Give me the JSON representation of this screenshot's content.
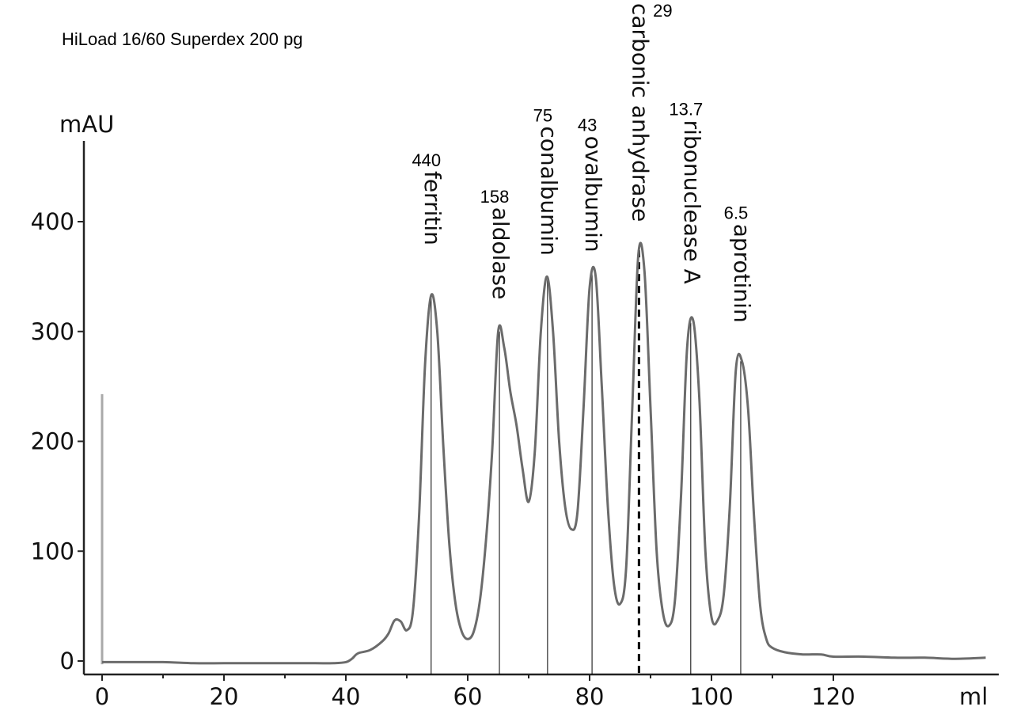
{
  "chart_data": {
    "type": "line",
    "title": "HiLoad 16/60 Superdex 200 pg",
    "xlabel": "ml",
    "ylabel": "mAU",
    "xlim": [
      -3,
      147
    ],
    "ylim": [
      -12,
      475
    ],
    "x_ticks": [
      0,
      20,
      40,
      60,
      80,
      100,
      120
    ],
    "x_minor_ticks": [
      10,
      30,
      50,
      70,
      90,
      110
    ],
    "y_ticks": [
      0,
      100,
      200,
      300,
      400
    ],
    "grid": false,
    "colors": {
      "trace": "#6b6b6b",
      "axis": "#222222",
      "injection_marker": "#aaaaaa"
    },
    "injection_marker": {
      "x": 0,
      "y_top": 243
    },
    "series": [
      {
        "x": [
          0,
          5,
          10,
          15,
          20,
          25,
          30,
          35,
          38,
          40,
          41,
          42,
          44,
          46,
          47,
          48,
          49,
          50,
          51,
          52,
          53,
          54,
          55,
          56,
          57,
          58,
          59,
          60,
          61,
          62,
          63,
          64,
          65,
          66,
          67,
          68,
          69,
          70,
          71,
          72,
          73,
          74,
          75,
          76,
          77,
          78,
          79,
          80,
          81,
          82,
          83,
          84,
          85,
          86,
          87,
          88,
          89,
          90,
          91,
          92,
          93,
          94,
          95,
          96,
          97,
          98,
          99,
          100,
          101,
          102,
          103,
          104,
          105,
          106,
          107,
          108,
          109,
          110,
          112,
          115,
          118,
          120,
          125,
          130,
          135,
          140,
          145
        ],
        "y": [
          -1,
          -1,
          -1,
          -2,
          -2,
          -2,
          -2,
          -2,
          -2,
          -1,
          2,
          7,
          10,
          18,
          25,
          37,
          36,
          28,
          45,
          130,
          270,
          333,
          300,
          195,
          105,
          52,
          27,
          20,
          27,
          55,
          110,
          190,
          300,
          285,
          245,
          215,
          175,
          145,
          190,
          300,
          350,
          300,
          200,
          140,
          120,
          135,
          230,
          340,
          350,
          250,
          140,
          70,
          52,
          85,
          230,
          370,
          355,
          230,
          100,
          45,
          32,
          55,
          150,
          285,
          310,
          240,
          100,
          40,
          37,
          60,
          140,
          265,
          273,
          230,
          130,
          50,
          20,
          12,
          8,
          6,
          6,
          4,
          4,
          3,
          3,
          2,
          3
        ]
      }
    ],
    "peaks": [
      {
        "name": "ferritin",
        "mw": "440",
        "x": 54,
        "y": 333
      },
      {
        "name": "aldolase",
        "mw": "158",
        "x": 65.2,
        "y": 300
      },
      {
        "name": "conalbumin",
        "mw": "75",
        "x": 73.1,
        "y": 350
      },
      {
        "name": "ovalbumin",
        "mw": "43",
        "x": 80.4,
        "y": 353
      },
      {
        "name": "carbonic anhydrase",
        "mw": "29",
        "x": 88.1,
        "y": 374,
        "dashed": true
      },
      {
        "name": "ribonuclease A",
        "mw": "13.7",
        "x": 96.6,
        "y": 308
      },
      {
        "name": "aprotinin",
        "mw": "6.5",
        "x": 104.8,
        "y": 273
      }
    ]
  }
}
